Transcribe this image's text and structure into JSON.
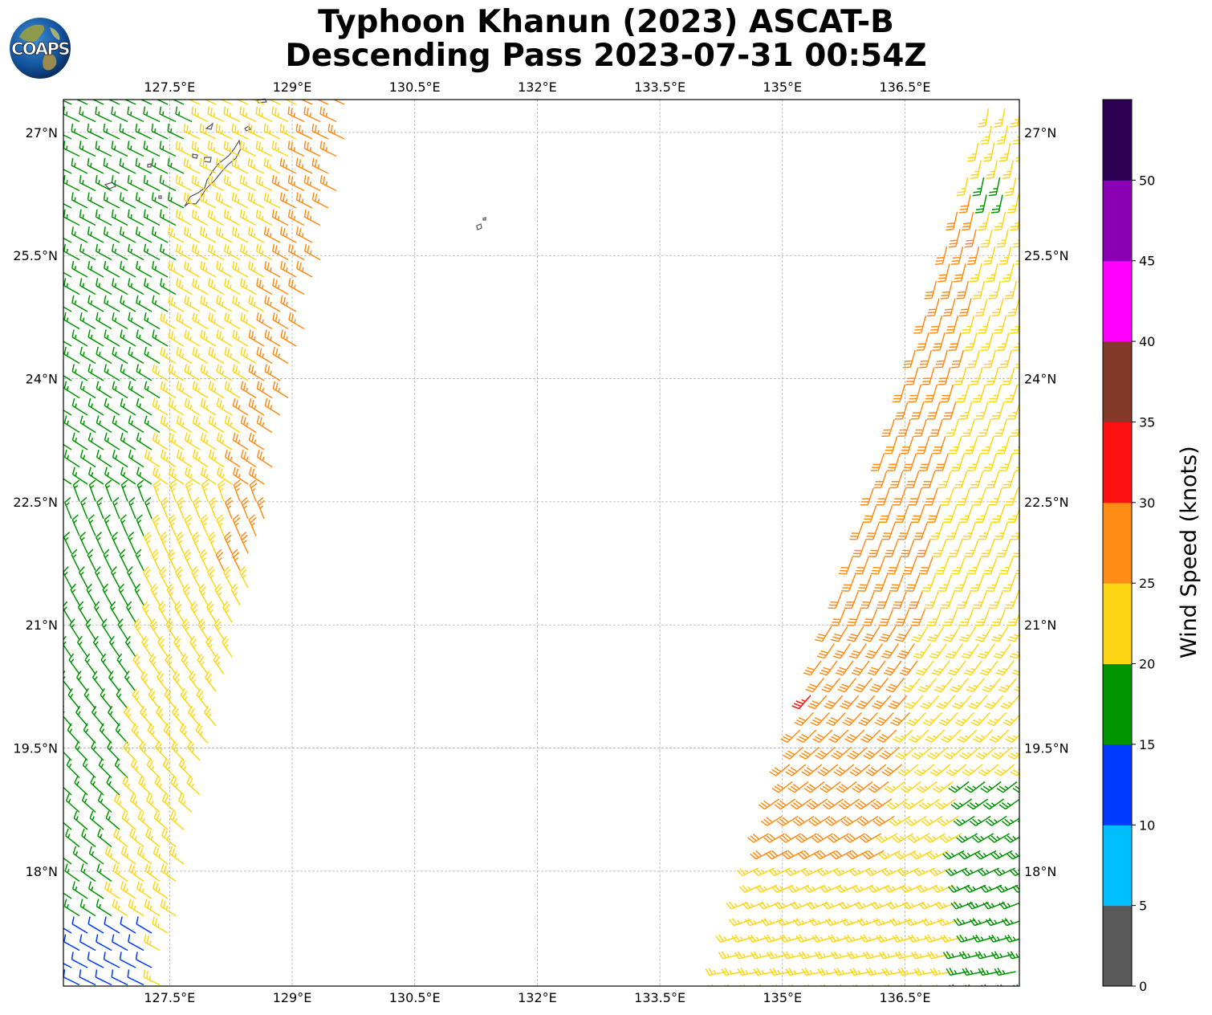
{
  "title": {
    "line1": "Typhoon Khanun (2023) ASCAT-B",
    "line2": "Descending Pass 2023-07-31 00:54Z"
  },
  "logo": {
    "text": "COAPS"
  },
  "map": {
    "lon_range": [
      126.2,
      137.9
    ],
    "lat_range": [
      16.6,
      27.4
    ],
    "lon_ticks": [
      "127.5°E",
      "129°E",
      "130.5°E",
      "132°E",
      "133.5°E",
      "135°E",
      "136.5°E"
    ],
    "lat_ticks": [
      "27°N",
      "25.5°N",
      "24°N",
      "22.5°N",
      "21°N",
      "19.5°N",
      "18°N"
    ],
    "gridlines": true
  },
  "colorbar": {
    "label": "Wind Speed (knots)",
    "tick_labels": [
      "0",
      "5",
      "10",
      "15",
      "20",
      "25",
      "30",
      "35",
      "40",
      "45",
      "50"
    ],
    "colors": [
      "#595959",
      "#00bfff",
      "#0039ff",
      "#009400",
      "#ffd616",
      "#ff8c15",
      "#ff1010",
      "#843a29",
      "#ff00ff",
      "#8a00b2",
      "#2d0054"
    ]
  }
}
